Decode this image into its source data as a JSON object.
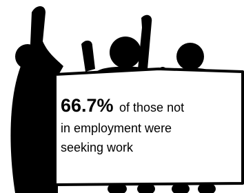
{
  "stat": "66.7%",
  "caption_lines": [
    "of those not",
    "in employment were",
    "seeking work"
  ]
}
